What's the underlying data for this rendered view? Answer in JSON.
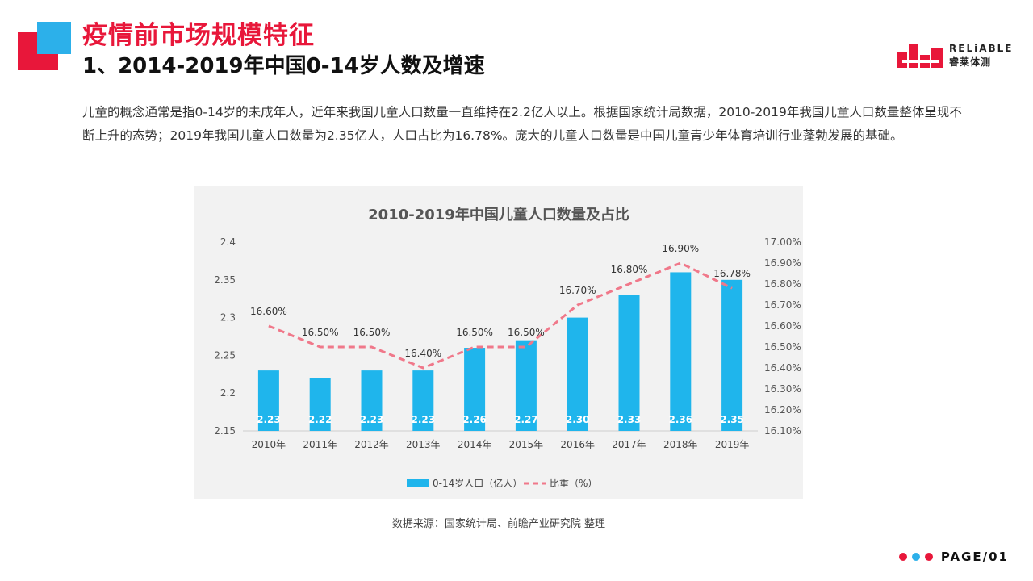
{
  "header": {
    "title": "疫情前市场规模特征",
    "subtitle": "1、2014-2019年中国0-14岁人数及增速"
  },
  "logo": {
    "en": "RELiABLE",
    "cn": "睿莱体测"
  },
  "intro": "儿童的概念通常是指0-14岁的未成年人，近年来我国儿童人口数量一直维持在2.2亿人以上。根据国家统计局数据，2010-2019年我国儿童人口数量整体呈现不断上升的态势；2019年我国儿童人口数量为2.35亿人，人口占比为16.78%。庞大的儿童人口数量是中国儿童青少年体育培训行业蓬勃发展的基础。",
  "chart_data": {
    "type": "bar",
    "title": "2010-2019年中国儿童人口数量及占比",
    "categories": [
      "2010年",
      "2011年",
      "2012年",
      "2013年",
      "2014年",
      "2015年",
      "2016年",
      "2017年",
      "2018年",
      "2019年"
    ],
    "series": [
      {
        "name": "0-14岁人口（亿人）",
        "type": "bar",
        "axis": "left",
        "color": "#1fb5ec",
        "values": [
          2.23,
          2.22,
          2.23,
          2.23,
          2.26,
          2.27,
          2.3,
          2.33,
          2.36,
          2.35
        ],
        "labels": [
          "2.23",
          "2.22",
          "2.23",
          "2.23",
          "2.26",
          "2.27",
          "2.30",
          "2.33",
          "2.36",
          "2.35"
        ]
      },
      {
        "name": "比重（%）",
        "type": "line",
        "axis": "right",
        "color": "#f0788a",
        "dashed": true,
        "values": [
          16.6,
          16.5,
          16.5,
          16.4,
          16.5,
          16.5,
          16.7,
          16.8,
          16.9,
          16.78
        ],
        "labels": [
          "16.60%",
          "16.50%",
          "16.50%",
          "16.40%",
          "16.50%",
          "16.50%",
          "16.70%",
          "16.80%",
          "16.90%",
          "16.78%"
        ]
      }
    ],
    "y_left": {
      "lim": [
        2.15,
        2.4
      ],
      "ticks": [
        "2.15",
        "2.2",
        "2.25",
        "2.3",
        "2.35",
        "2.4"
      ]
    },
    "y_right": {
      "lim": [
        16.1,
        17.0
      ],
      "ticks": [
        "16.10%",
        "16.20%",
        "16.30%",
        "16.40%",
        "16.50%",
        "16.60%",
        "16.70%",
        "16.80%",
        "16.90%",
        "17.00%"
      ]
    },
    "grid": false,
    "legend": "bottom"
  },
  "source": "数据来源：国家统计局、前瞻产业研究院 整理",
  "footer": {
    "page": "PAGE/01",
    "dot_colors": [
      "#e8173a",
      "#2cb0ea",
      "#e8173a"
    ]
  }
}
